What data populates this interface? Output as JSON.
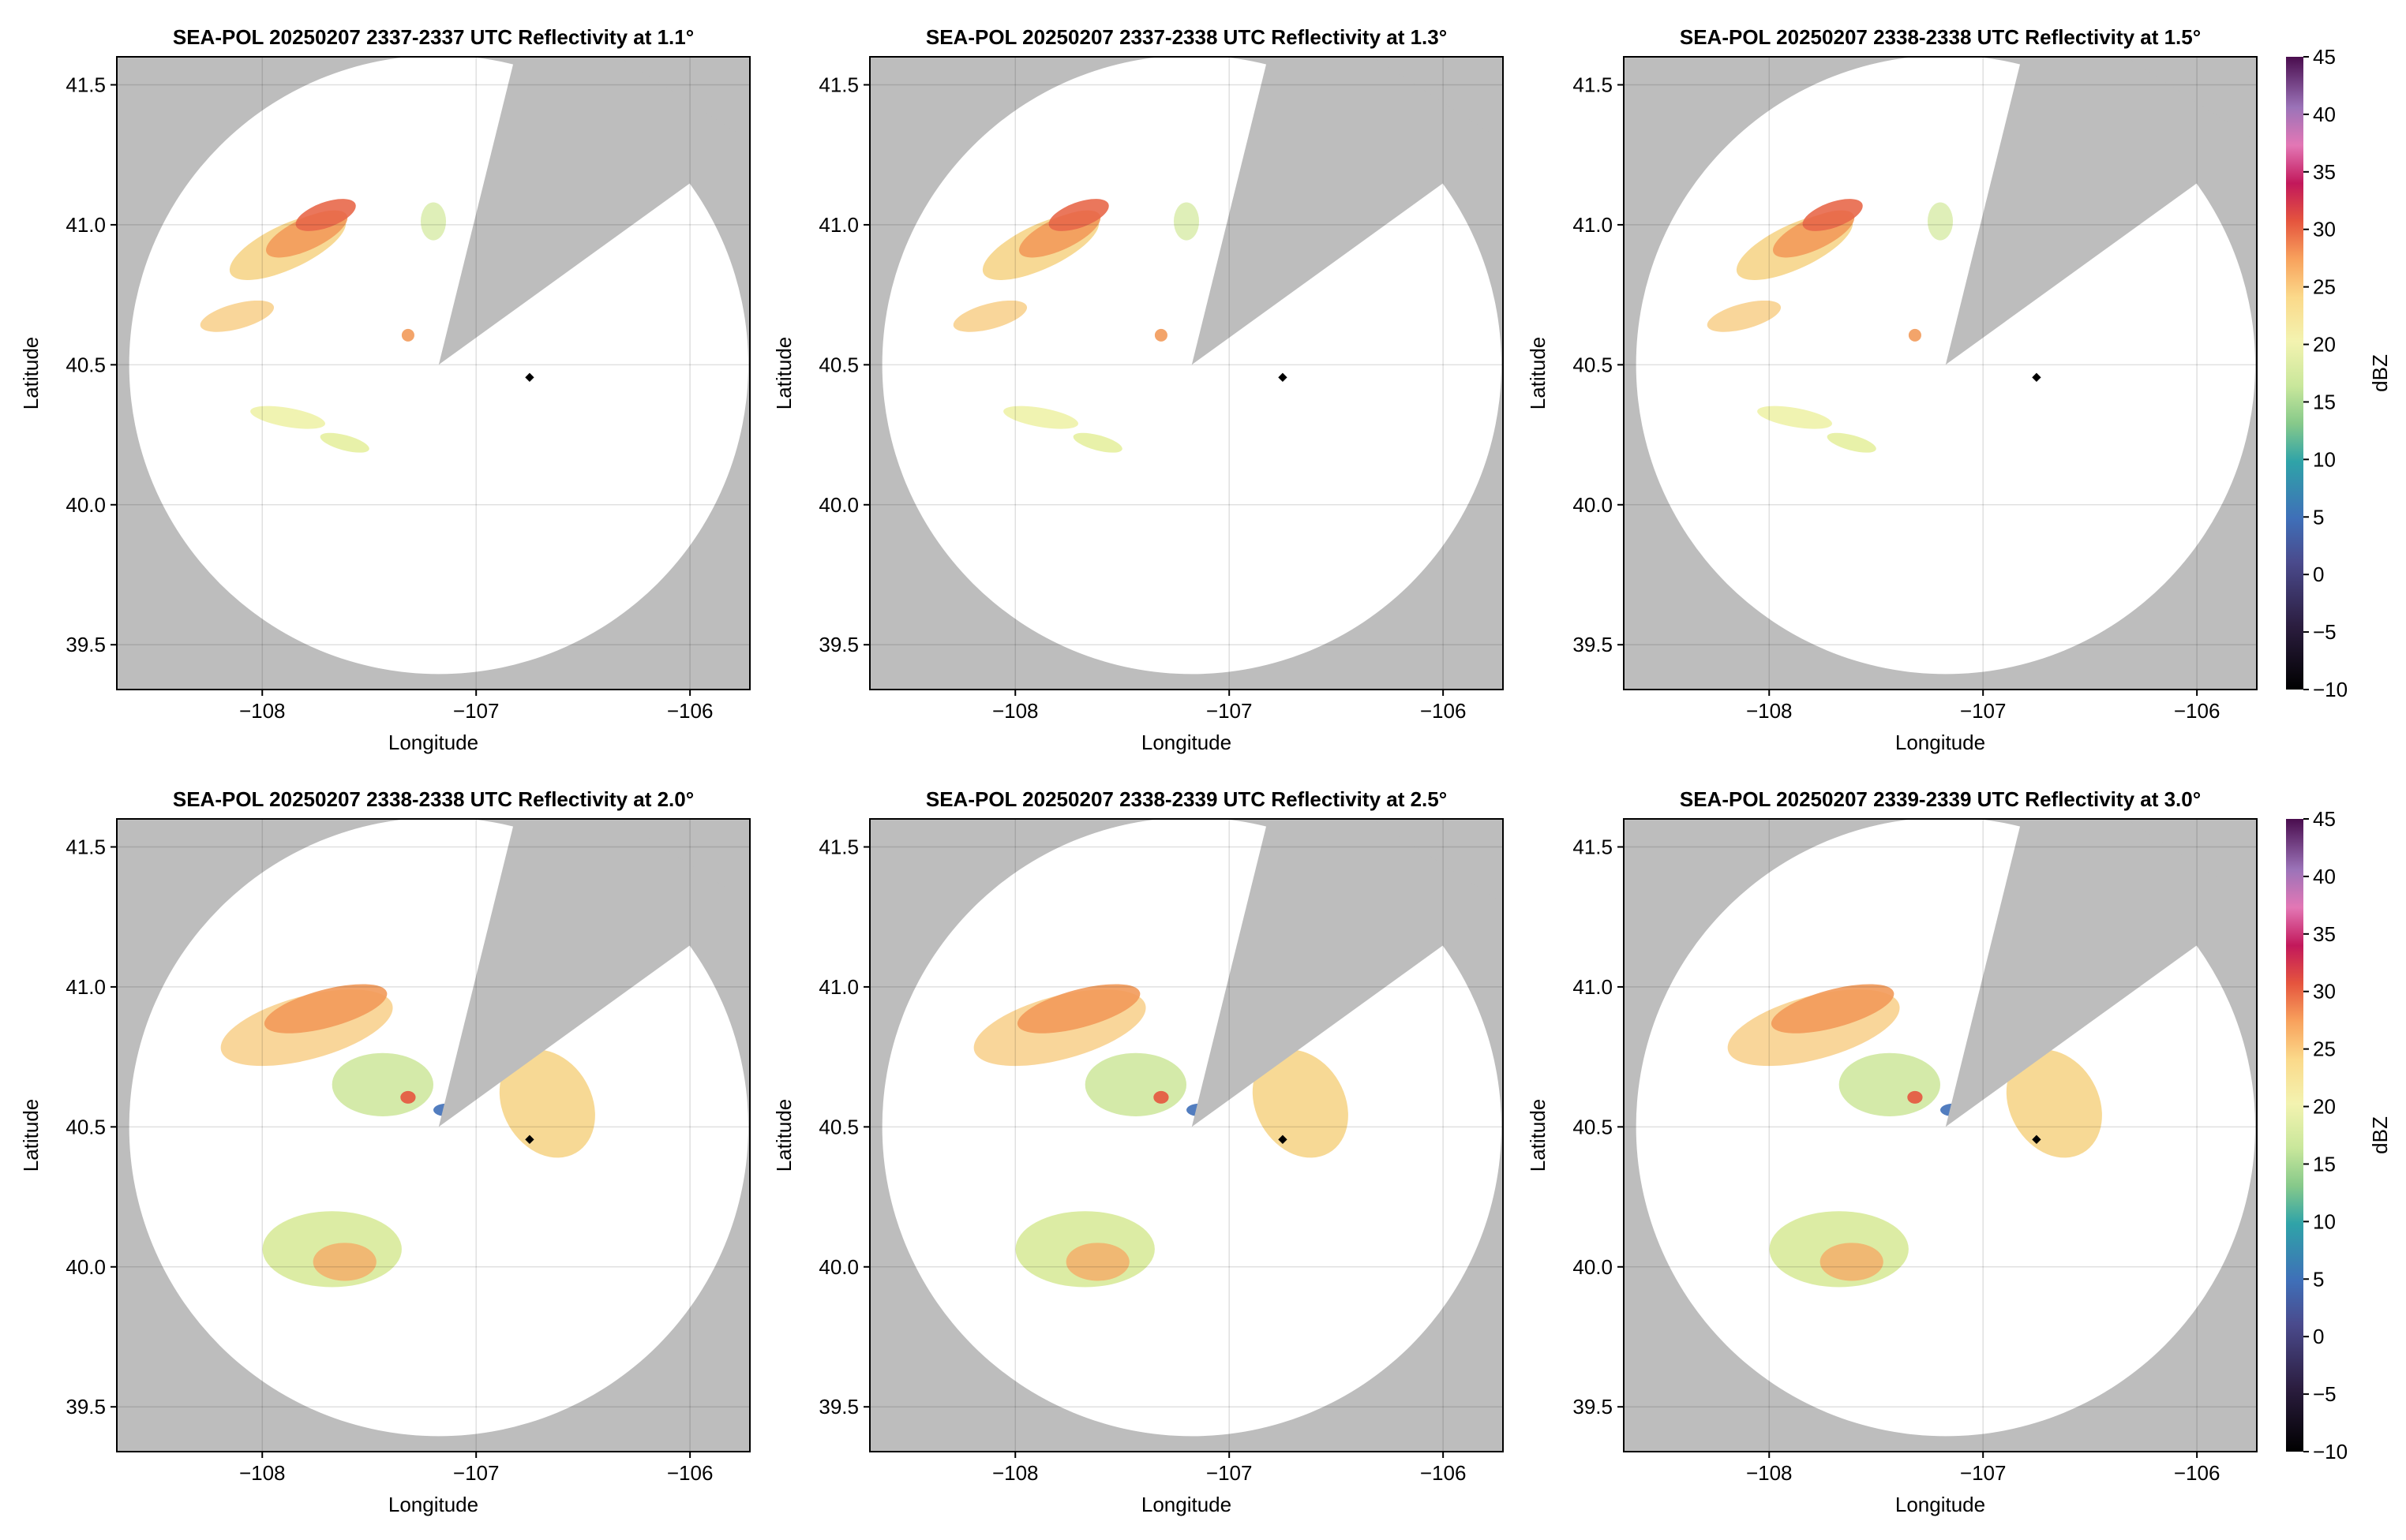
{
  "chart_data": [
    {
      "type": "radar",
      "title": "SEA-POL 20250207 2337-2337 UTC Reflectivity at 1.1°",
      "xlabel": "Longitude",
      "ylabel": "Latitude",
      "xlim": [
        -108.68,
        -105.72
      ],
      "ylim": [
        39.34,
        41.6
      ],
      "xticks": [
        {
          "value": -108,
          "label": "−108"
        },
        {
          "value": -107,
          "label": "−107"
        },
        {
          "value": -106,
          "label": "−106"
        }
      ],
      "yticks": [
        39.5,
        {
          "value": 40,
          "label": "40.0"
        },
        40.5,
        {
          "value": 41,
          "label": "41.0"
        },
        41.5
      ],
      "grid": true,
      "points": {
        "x": [
          -106.75
        ],
        "y": [
          40.455
        ]
      }
    },
    {
      "type": "radar",
      "title": "SEA-POL 20250207 2337-2338 UTC Reflectivity at 1.3°",
      "xlabel": "Longitude",
      "ylabel": "Latitude",
      "xlim": [
        -108.68,
        -105.72
      ],
      "ylim": [
        39.34,
        41.6
      ],
      "xticks": [
        {
          "value": -108,
          "label": "−108"
        },
        {
          "value": -107,
          "label": "−107"
        },
        {
          "value": -106,
          "label": "−106"
        }
      ],
      "yticks": [
        39.5,
        {
          "value": 40,
          "label": "40.0"
        },
        40.5,
        {
          "value": 41,
          "label": "41.0"
        },
        41.5
      ],
      "grid": true,
      "points": {
        "x": [
          -106.75
        ],
        "y": [
          40.455
        ]
      }
    },
    {
      "type": "radar",
      "title": "SEA-POL 20250207 2338-2338 UTC Reflectivity at 1.5°",
      "xlabel": "Longitude",
      "ylabel": "Latitude",
      "xlim": [
        -108.68,
        -105.72
      ],
      "ylim": [
        39.34,
        41.6
      ],
      "xticks": [
        {
          "value": -108,
          "label": "−108"
        },
        {
          "value": -107,
          "label": "−107"
        },
        {
          "value": -106,
          "label": "−106"
        }
      ],
      "yticks": [
        39.5,
        {
          "value": 40,
          "label": "40.0"
        },
        40.5,
        {
          "value": 41,
          "label": "41.0"
        },
        41.5
      ],
      "grid": true,
      "points": {
        "x": [
          -106.75
        ],
        "y": [
          40.455
        ]
      },
      "colorbar": {
        "label": "dBZ",
        "lim": [
          -10,
          45
        ],
        "ticks": [
          {
            "value": -10,
            "label": "−10"
          },
          {
            "value": -5,
            "label": "−5"
          },
          0,
          5,
          10,
          15,
          20,
          25,
          30,
          35,
          40,
          45
        ]
      }
    },
    {
      "type": "radar",
      "title": "SEA-POL 20250207 2338-2338 UTC Reflectivity at 2.0°",
      "xlabel": "Longitude",
      "ylabel": "Latitude",
      "xlim": [
        -108.68,
        -105.72
      ],
      "ylim": [
        39.34,
        41.6
      ],
      "xticks": [
        {
          "value": -108,
          "label": "−108"
        },
        {
          "value": -107,
          "label": "−107"
        },
        {
          "value": -106,
          "label": "−106"
        }
      ],
      "yticks": [
        39.5,
        {
          "value": 40,
          "label": "40.0"
        },
        40.5,
        {
          "value": 41,
          "label": "41.0"
        },
        41.5
      ],
      "grid": true,
      "points": {
        "x": [
          -106.75
        ],
        "y": [
          40.455
        ]
      }
    },
    {
      "type": "radar",
      "title": "SEA-POL 20250207 2338-2339 UTC Reflectivity at 2.5°",
      "xlabel": "Longitude",
      "ylabel": "Latitude",
      "xlim": [
        -108.68,
        -105.72
      ],
      "ylim": [
        39.34,
        41.6
      ],
      "xticks": [
        {
          "value": -108,
          "label": "−108"
        },
        {
          "value": -107,
          "label": "−107"
        },
        {
          "value": -106,
          "label": "−106"
        }
      ],
      "yticks": [
        39.5,
        {
          "value": 40,
          "label": "40.0"
        },
        40.5,
        {
          "value": 41,
          "label": "41.0"
        },
        41.5
      ],
      "grid": true,
      "points": {
        "x": [
          -106.75
        ],
        "y": [
          40.455
        ]
      }
    },
    {
      "type": "radar",
      "title": "SEA-POL 20250207 2339-2339 UTC Reflectivity at 3.0°",
      "xlabel": "Longitude",
      "ylabel": "Latitude",
      "xlim": [
        -108.68,
        -105.72
      ],
      "ylim": [
        39.34,
        41.6
      ],
      "xticks": [
        {
          "value": -108,
          "label": "−108"
        },
        {
          "value": -107,
          "label": "−107"
        },
        {
          "value": -106,
          "label": "−106"
        }
      ],
      "yticks": [
        39.5,
        {
          "value": 40,
          "label": "40.0"
        },
        40.5,
        {
          "value": 41,
          "label": "41.0"
        },
        41.5
      ],
      "grid": true,
      "points": {
        "x": [
          -106.75
        ],
        "y": [
          40.455
        ]
      },
      "colorbar": {
        "label": "dBZ",
        "lim": [
          -10,
          45
        ],
        "ticks": [
          {
            "value": -10,
            "label": "−10"
          },
          {
            "value": -5,
            "label": "−5"
          },
          0,
          5,
          10,
          15,
          20,
          25,
          30,
          35,
          40,
          45
        ]
      }
    }
  ]
}
